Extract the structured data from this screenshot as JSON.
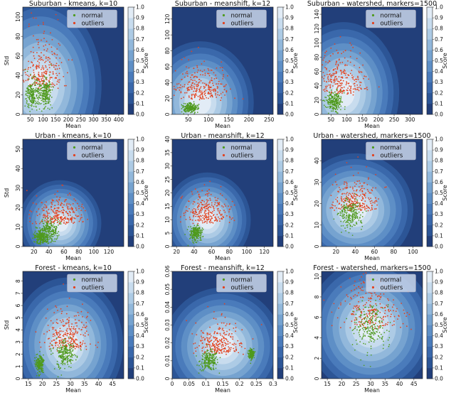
{
  "colorbar": {
    "label": "Score",
    "ticks": [
      "0.0",
      "0.1",
      "0.2",
      "0.3",
      "0.4",
      "0.5",
      "0.6",
      "0.7",
      "0.8",
      "0.9",
      "1.0"
    ],
    "colors": [
      "#223f7a",
      "#2c5596",
      "#3a68ab",
      "#4a7bbb",
      "#5e8fc6",
      "#76a3d0",
      "#92b8db",
      "#adcbe5",
      "#c8dcee",
      "#e2ecf6"
    ]
  },
  "legend": {
    "normal": "normal",
    "outliers": "outliers"
  },
  "colors": {
    "normal": "#4f9a1e",
    "outliers": "#e2421f"
  },
  "chart_data": [
    {
      "type": "scatter",
      "title": "Suburban - kmeans, k=10",
      "xlabel": "Mean",
      "ylabel": "Std",
      "xlim": [
        20,
        420
      ],
      "ylim": [
        0,
        110
      ],
      "xticks": [
        50,
        100,
        150,
        200,
        250,
        300,
        350,
        400
      ],
      "yticks": [
        0,
        20,
        40,
        60,
        80,
        100
      ],
      "normal_clusters": [
        [
          60,
          20,
          30,
          18
        ],
        [
          110,
          22,
          25,
          15
        ]
      ],
      "outlier_center": [
        95,
        28
      ],
      "outlier_spread": [
        80,
        30
      ],
      "region": [
        90,
        30,
        220,
        80
      ],
      "series": [
        {
          "name": "normal"
        },
        {
          "name": "outliers"
        }
      ]
    },
    {
      "type": "scatter",
      "title": "Suburban - meanshift, k=12",
      "xlabel": "Mean",
      "ylabel": "Std",
      "xlim": [
        10,
        260
      ],
      "ylim": [
        0,
        135
      ],
      "xticks": [
        50,
        100,
        150,
        200,
        250
      ],
      "yticks": [
        0,
        20,
        40,
        60,
        80,
        100,
        120
      ],
      "normal_clusters": [
        [
          55,
          8,
          20,
          6
        ]
      ],
      "outlier_center": [
        80,
        20
      ],
      "outlier_spread": [
        60,
        25
      ],
      "region": [
        80,
        15,
        120,
        70
      ],
      "series": [
        {
          "name": "normal"
        },
        {
          "name": "outliers"
        }
      ]
    },
    {
      "type": "scatter",
      "title": "Suburban - watershed, markers=1500",
      "xlabel": "Mean",
      "ylabel": "Std",
      "xlim": [
        20,
        340
      ],
      "ylim": [
        0,
        150
      ],
      "xticks": [
        50,
        100,
        150,
        200,
        250,
        300
      ],
      "yticks": [
        0,
        20,
        40,
        60,
        80,
        100,
        120,
        140
      ],
      "normal_clusters": [
        [
          60,
          18,
          30,
          14
        ]
      ],
      "outlier_center": [
        80,
        30
      ],
      "outlier_spread": [
        70,
        35
      ],
      "region": [
        90,
        30,
        160,
        90
      ],
      "series": [
        {
          "name": "normal"
        },
        {
          "name": "outliers"
        }
      ]
    },
    {
      "type": "scatter",
      "title": "Urban - kmeans, k=10",
      "xlabel": "Mean",
      "ylabel": "Std",
      "xlim": [
        5,
        140
      ],
      "ylim": [
        0,
        55
      ],
      "xticks": [
        20,
        40,
        60,
        80,
        100,
        120
      ],
      "yticks": [
        0,
        10,
        20,
        30,
        40,
        50
      ],
      "normal_clusters": [
        [
          40,
          8,
          14,
          6
        ],
        [
          30,
          5,
          10,
          4
        ]
      ],
      "outlier_center": [
        55,
        12
      ],
      "outlier_spread": [
        30,
        8
      ],
      "region": [
        55,
        12,
        50,
        20
      ],
      "series": [
        {
          "name": "normal"
        },
        {
          "name": "outliers"
        }
      ]
    },
    {
      "type": "scatter",
      "title": "Urban - meanshift, k=12",
      "xlabel": "Mean",
      "ylabel": "Std",
      "xlim": [
        15,
        130
      ],
      "ylim": [
        0,
        40
      ],
      "xticks": [
        20,
        40,
        60,
        80,
        100,
        120
      ],
      "yticks": [
        0,
        5,
        10,
        15,
        20,
        25,
        30,
        35,
        40
      ],
      "normal_clusters": [
        [
          42,
          5,
          8,
          3
        ]
      ],
      "outlier_center": [
        55,
        9
      ],
      "outlier_spread": [
        25,
        7
      ],
      "region": [
        55,
        10,
        45,
        16
      ],
      "series": [
        {
          "name": "normal"
        },
        {
          "name": "outliers"
        }
      ]
    },
    {
      "type": "scatter",
      "title": "Urban - watershed, markers=1500",
      "xlabel": "Mean",
      "ylabel": "Std",
      "xlim": [
        5,
        110
      ],
      "ylim": [
        0,
        50
      ],
      "xticks": [
        20,
        40,
        60,
        80,
        100
      ],
      "yticks": [
        0,
        10,
        20,
        30,
        40
      ],
      "normal_clusters": [
        [
          35,
          15,
          14,
          7
        ]
      ],
      "outlier_center": [
        40,
        17
      ],
      "outlier_spread": [
        22,
        9
      ],
      "region": [
        40,
        17,
        55,
        24
      ],
      "series": [
        {
          "name": "normal"
        },
        {
          "name": "outliers"
        }
      ]
    },
    {
      "type": "scatter",
      "title": "Forest - kmeans, k=10",
      "xlabel": "Mean",
      "ylabel": "Std",
      "xlim": [
        13,
        49
      ],
      "ylim": [
        0,
        8.8
      ],
      "xticks": [
        15,
        20,
        25,
        30,
        35,
        40,
        45
      ],
      "yticks": [
        0,
        1,
        2,
        3,
        4,
        5,
        6,
        7,
        8
      ],
      "normal_clusters": [
        [
          28,
          2.0,
          4,
          1.2
        ],
        [
          19,
          1.2,
          1.5,
          0.8
        ]
      ],
      "outlier_center": [
        29,
        2.4
      ],
      "outlier_spread": [
        7,
        2
      ],
      "region": [
        29,
        2.8,
        18,
        5
      ],
      "series": [
        {
          "name": "normal"
        },
        {
          "name": "outliers"
        }
      ]
    },
    {
      "type": "scatter",
      "title": "Forest - meanshift, k=12",
      "xlabel": "Mean",
      "ylabel": "Std",
      "xlim": [
        0.0,
        0.3
      ],
      "ylim": [
        0,
        0.06
      ],
      "xticks": [
        0.0,
        0.05,
        0.1,
        0.15,
        0.2,
        0.25,
        0.3
      ],
      "yticks": [
        0.0,
        0.01,
        0.02,
        0.03,
        0.04,
        0.05,
        0.06
      ],
      "normal_clusters": [
        [
          0.11,
          0.01,
          0.03,
          0.006
        ],
        [
          0.235,
          0.014,
          0.008,
          0.003
        ]
      ],
      "outlier_center": [
        0.14,
        0.014
      ],
      "outlier_spread": [
        0.06,
        0.01
      ],
      "region": [
        0.15,
        0.018,
        0.16,
        0.03
      ],
      "series": [
        {
          "name": "normal"
        },
        {
          "name": "outliers"
        }
      ]
    },
    {
      "type": "scatter",
      "title": "Forest - watershed, markers=1500",
      "xlabel": "Mean",
      "ylabel": "Std",
      "xlim": [
        13,
        48
      ],
      "ylim": [
        0,
        10.5
      ],
      "xticks": [
        15,
        20,
        25,
        30,
        35,
        40,
        45
      ],
      "yticks": [
        0,
        2,
        4,
        6,
        8,
        10
      ],
      "normal_clusters": [
        [
          30,
          5,
          7,
          2.5
        ]
      ],
      "outlier_center": [
        30,
        5
      ],
      "outlier_spread": [
        9,
        3.2
      ],
      "region": [
        30,
        5,
        20,
        6
      ],
      "series": [
        {
          "name": "normal"
        },
        {
          "name": "outliers"
        }
      ]
    }
  ]
}
